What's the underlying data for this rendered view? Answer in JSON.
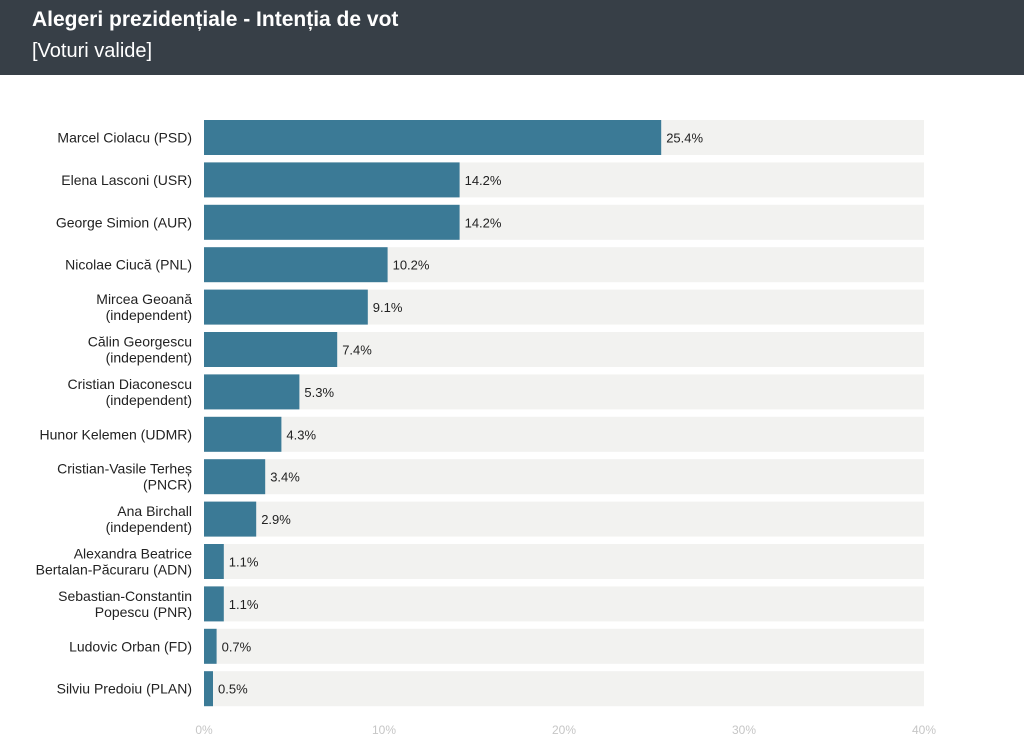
{
  "header": {
    "title": "Alegeri prezidențiale - Intenția de vot",
    "subtitle": "[Voturi valide]"
  },
  "colors": {
    "header_bg": "#373f47",
    "bar": "#3b7a96",
    "track": "#f2f2f0",
    "tick_text": "#c6c6c6"
  },
  "chart_data": {
    "type": "bar",
    "orientation": "horizontal",
    "categories": [
      [
        "Marcel Ciolacu (PSD)"
      ],
      [
        "Elena Lasconi (USR)"
      ],
      [
        "George Simion (AUR)"
      ],
      [
        "Nicolae Ciucă (PNL)"
      ],
      [
        "Mircea Geoană",
        "(independent)"
      ],
      [
        "Călin Georgescu",
        "(independent)"
      ],
      [
        "Cristian Diaconescu",
        "(independent)"
      ],
      [
        "Hunor Kelemen (UDMR)"
      ],
      [
        "Cristian-Vasile Terheș",
        "(PNCR)"
      ],
      [
        "Ana Birchall",
        "(independent)"
      ],
      [
        "Alexandra Beatrice",
        "Bertalan-Păcuraru (ADN)"
      ],
      [
        "Sebastian-Constantin",
        "Popescu (PNR)"
      ],
      [
        "Ludovic Orban (FD)"
      ],
      [
        "Silviu Predoiu (PLAN)"
      ]
    ],
    "values": [
      25.4,
      14.2,
      14.2,
      10.2,
      9.1,
      7.4,
      5.3,
      4.3,
      3.4,
      2.9,
      1.1,
      1.1,
      0.7,
      0.5
    ],
    "value_labels": [
      "25.4%",
      "14.2%",
      "14.2%",
      "10.2%",
      "9.1%",
      "7.4%",
      "5.3%",
      "4.3%",
      "3.4%",
      "2.9%",
      "1.1%",
      "1.1%",
      "0.7%",
      "0.5%"
    ],
    "xlim": [
      0,
      40
    ],
    "ticks": [
      0,
      10,
      20,
      30,
      40
    ],
    "tick_labels": [
      "0%",
      "10%",
      "20%",
      "30%",
      "40%"
    ],
    "grid": false,
    "legend": "none"
  }
}
